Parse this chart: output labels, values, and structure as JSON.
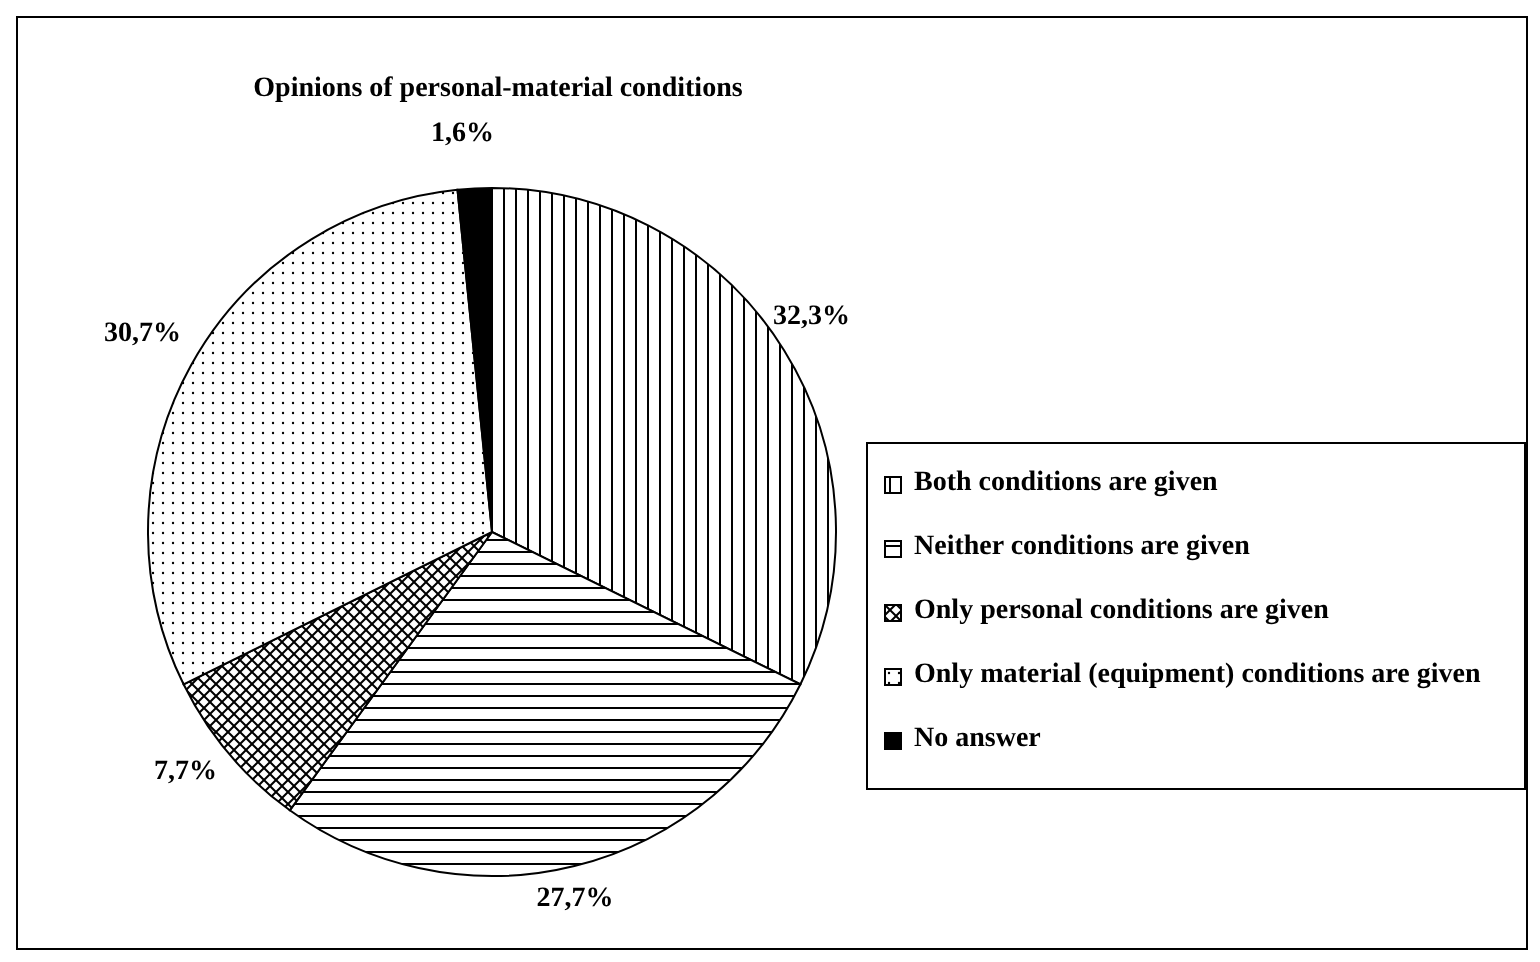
{
  "chart_data": {
    "type": "pie",
    "title": "Opinions of personal-material conditions",
    "categories": [
      "Both conditions are given",
      "Neither conditions are given",
      "Only personal conditions are given",
      "Only material (equipment) conditions are given",
      "No answer"
    ],
    "values": [
      32.3,
      27.7,
      7.7,
      30.7,
      1.6
    ],
    "value_labels": [
      "32,3%",
      "27,7%",
      "7,7%",
      "30,7%",
      "1,6%"
    ],
    "colors": [
      "#000000",
      "#000000",
      "#000000",
      "#000000",
      "#000000"
    ],
    "legend": "right"
  }
}
